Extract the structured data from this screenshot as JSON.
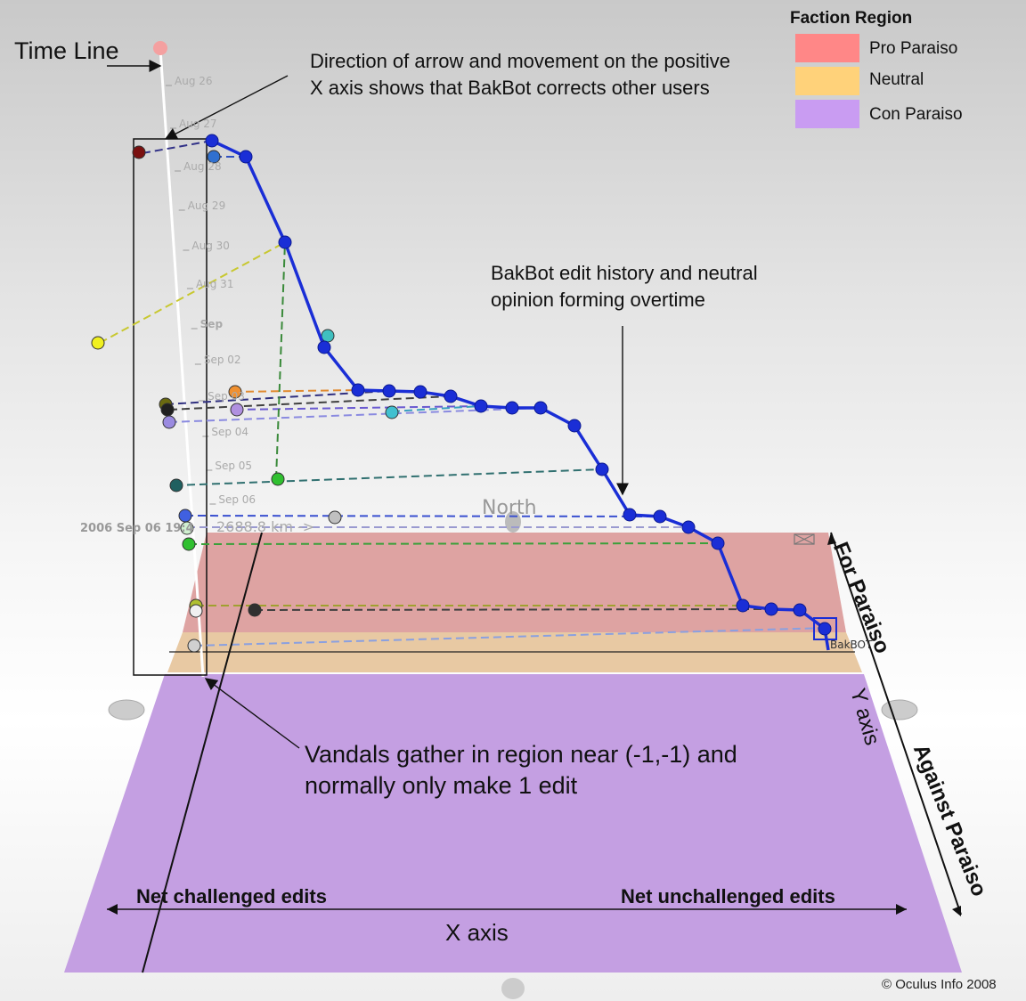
{
  "time_line_label": "Time Line",
  "annotations": {
    "arrow_direction": "Direction of arrow and movement on the positive X axis shows that BakBot corrects other users",
    "bakbot_history": "BakBot edit history and neutral opinion forming overtime",
    "vandals": "Vandals gather in region near (-1,-1) and normally only make 1 edit"
  },
  "legend": {
    "title": "Faction Region",
    "items": [
      {
        "label": "Pro Paraiso",
        "color": "#ff8787"
      },
      {
        "label": "Neutral",
        "color": "#ffd27a"
      },
      {
        "label": "Con Paraiso",
        "color": "#c99cf2"
      }
    ]
  },
  "timeline_dates": [
    "Aug 26",
    "Aug 27",
    "Aug 28",
    "Aug 29",
    "Aug 30",
    "Aug 31",
    "Sep",
    "Sep 02",
    "Sep 03",
    "Sep 04",
    "Sep 05",
    "Sep 06"
  ],
  "timestamp": "2006 Sep 06 19:4",
  "distance": "2688.8 km ->",
  "north": "North",
  "bakbot_tag": "BakBOT",
  "axes": {
    "for_paraiso": "For Paraiso",
    "y_axis": "Y axis",
    "against_paraiso": "Against Paraiso",
    "net_challenged": "Net challenged edits",
    "net_unchallenged": "Net unchallenged edits",
    "x_axis": "X axis"
  },
  "copyright": "© Oculus Info 2008",
  "colors": {
    "pro": "#dea3a2",
    "neutral": "#e8c9a3",
    "con": "#c49fe2",
    "bakbot": "#1a2ed6"
  }
}
